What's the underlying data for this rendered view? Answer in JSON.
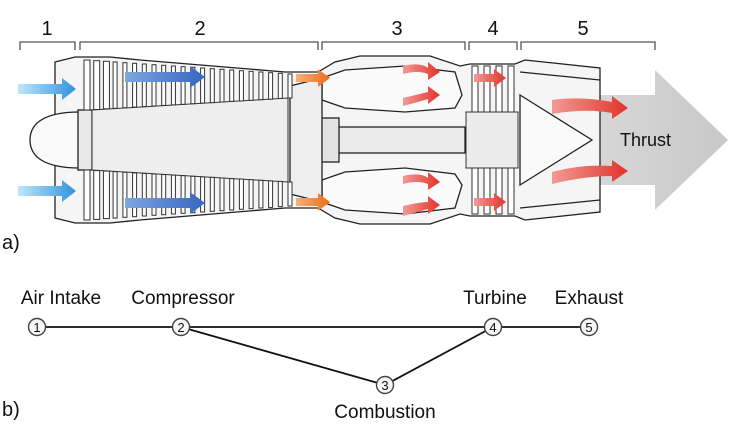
{
  "sections": [
    "1",
    "2",
    "3",
    "4",
    "5"
  ],
  "thrust_label": "Thrust",
  "panel_a": "a)",
  "panel_b": "b)",
  "stages": [
    {
      "num": "1",
      "label": "Air Intake"
    },
    {
      "num": "2",
      "label": "Compressor"
    },
    {
      "num": "3",
      "label": "Combustion"
    },
    {
      "num": "4",
      "label": "Turbine"
    },
    {
      "num": "5",
      "label": "Exhaust"
    }
  ],
  "colors": {
    "air_arrow": "#3f9fe0",
    "compressor_arrow": "#4a78c8",
    "fuel_arrow": "#f07f2d",
    "hot_arrow": "#e8473f",
    "thrust_arrow": "#cfcfcf",
    "engine_fill": "#f4f4f4",
    "engine_stroke": "#222222"
  }
}
